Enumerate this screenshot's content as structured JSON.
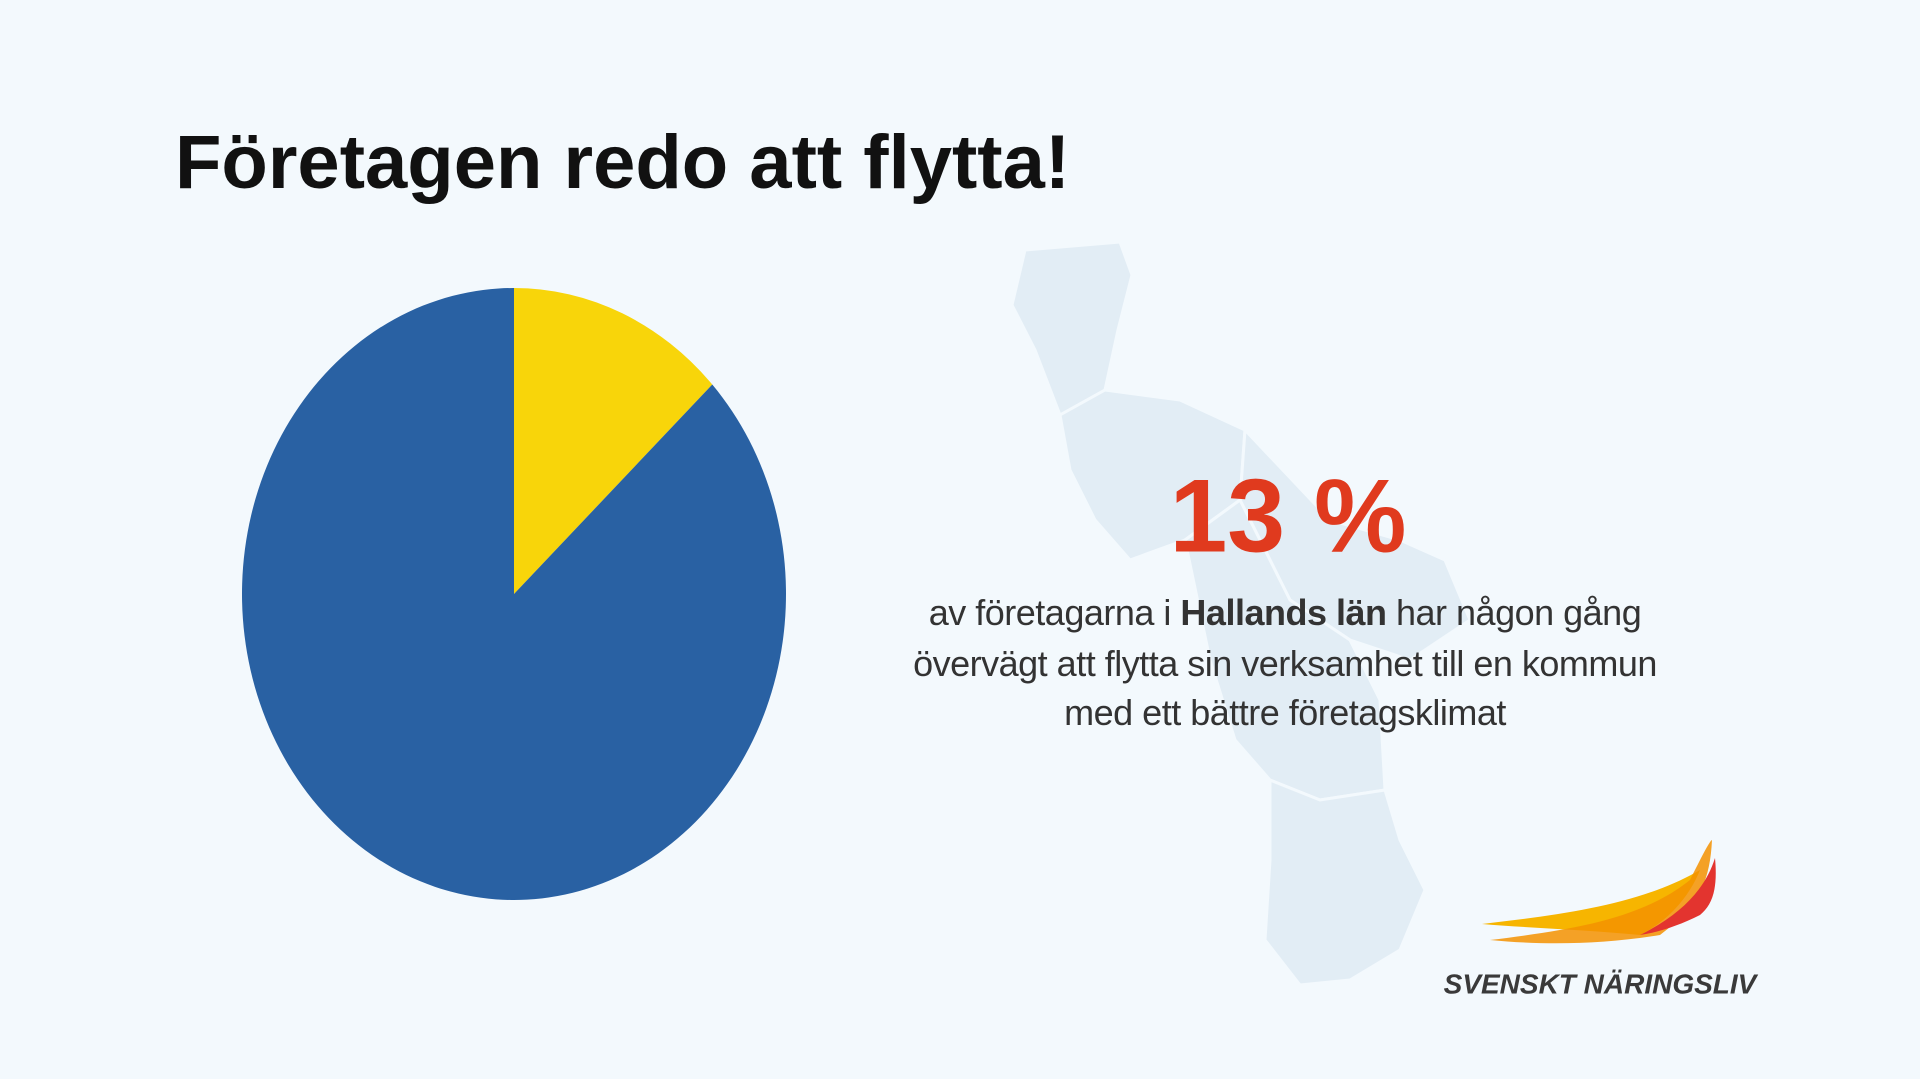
{
  "chart_data": {
    "type": "pie",
    "title": "Företagen redo att flytta!",
    "values": [
      13,
      87
    ],
    "value_labels": [
      "13 %",
      null
    ],
    "colors": [
      "#f8d50a",
      "#2961a3"
    ],
    "description": {
      "line1_before": "av företagarna i",
      "line1_bold": "Hallands län",
      "line1_after": "har någon gång",
      "line2": "övervägt att flytta sin verksamhet till en kommun",
      "line3": "med ett bättre företagsklimat"
    }
  },
  "logo": {
    "brand": "SVENSKT NÄRINGSLIV"
  }
}
